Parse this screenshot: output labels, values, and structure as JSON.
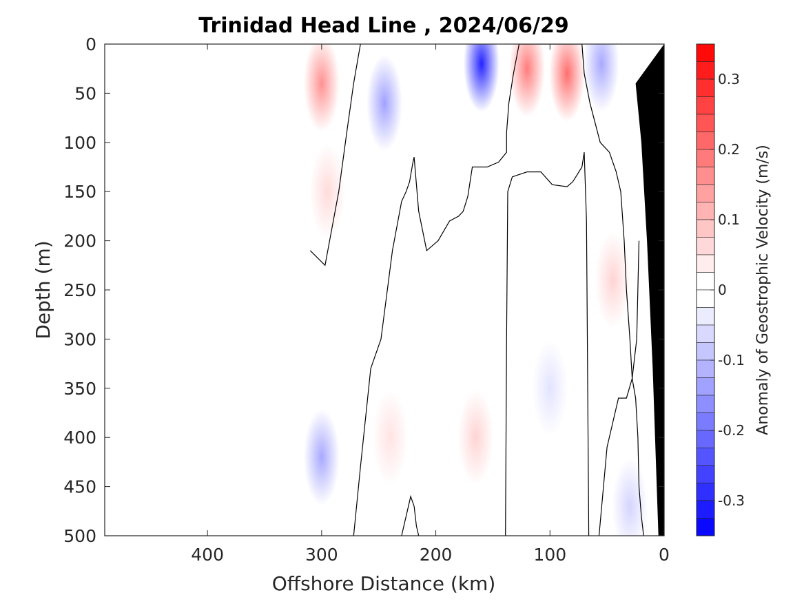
{
  "chart_data": {
    "type": "heatmap",
    "title": "Trinidad Head Line , 2024/06/29",
    "xlabel": "Offshore Distance (km)",
    "ylabel": "Depth (m)",
    "xlim": [
      490,
      0
    ],
    "ylim": [
      0,
      500
    ],
    "x_reversed": true,
    "y_reversed": true,
    "xticks": [
      400,
      300,
      200,
      100,
      0
    ],
    "yticks": [
      0,
      50,
      100,
      150,
      200,
      250,
      300,
      350,
      400,
      450,
      500
    ],
    "colorbar": {
      "label": "Anomaly of Geostrophic Velocity (m/s)",
      "range": [
        -0.35,
        0.35
      ],
      "ticks": [
        0.3,
        0.2,
        0.1,
        0,
        -0.1,
        -0.2,
        -0.3
      ],
      "tick_labels": [
        "0.3",
        "0.2",
        "0.1",
        "0",
        "-0.1",
        "-0.2",
        "-0.3"
      ],
      "levels_step": 0.025,
      "colormap": "blue-white-red",
      "negative_color": "#0000ff",
      "positive_color": "#ff0000"
    },
    "data_extent_km": [
      0,
      310
    ],
    "cells": [
      {
        "x": 300,
        "depth": 40,
        "value": 0.15
      },
      {
        "x": 295,
        "depth": 150,
        "value": 0.05
      },
      {
        "x": 300,
        "depth": 420,
        "value": -0.12
      },
      {
        "x": 245,
        "depth": 60,
        "value": -0.13
      },
      {
        "x": 240,
        "depth": 400,
        "value": 0.04
      },
      {
        "x": 160,
        "depth": 20,
        "value": -0.3
      },
      {
        "x": 165,
        "depth": 400,
        "value": 0.06
      },
      {
        "x": 120,
        "depth": 25,
        "value": 0.18
      },
      {
        "x": 85,
        "depth": 30,
        "value": 0.2
      },
      {
        "x": 100,
        "depth": 350,
        "value": -0.04
      },
      {
        "x": 55,
        "depth": 20,
        "value": -0.12
      },
      {
        "x": 45,
        "depth": 240,
        "value": 0.06
      },
      {
        "x": 30,
        "depth": 470,
        "value": -0.06
      }
    ],
    "zero_contours": [
      {
        "x": [
          310,
          297,
          285,
          278,
          272,
          266
        ],
        "depth": [
          210,
          225,
          150,
          90,
          40,
          0
        ]
      },
      {
        "x": [
          272,
          266,
          257,
          248,
          238,
          230,
          226,
          223,
          220,
          219,
          215,
          208,
          198,
          188,
          180,
          176,
          172,
          168,
          155,
          145,
          138,
          138,
          136,
          132,
          127,
          120,
          108,
          90,
          78,
          72,
          70,
          65,
          56,
          48,
          42,
          38,
          35,
          33,
          30,
          28,
          25,
          23,
          22,
          20,
          18
        ],
        "depth": [
          500,
          430,
          330,
          300,
          210,
          160,
          150,
          140,
          120,
          115,
          170,
          210,
          200,
          180,
          175,
          170,
          155,
          125,
          125,
          120,
          110,
          90,
          60,
          30,
          0,
          0,
          0,
          0,
          0,
          0,
          30,
          60,
          100,
          110,
          130,
          150,
          200,
          250,
          300,
          340,
          360,
          400,
          450,
          480,
          500
        ]
      },
      {
        "x": [
          230,
          222,
          219,
          217,
          215
        ],
        "depth": [
          500,
          460,
          470,
          490,
          500
        ]
      },
      {
        "x": [
          139,
          138,
          137,
          133,
          120,
          108,
          98,
          85,
          80,
          72,
          70,
          68,
          66
        ],
        "depth": [
          500,
          300,
          150,
          135,
          130,
          130,
          143,
          145,
          140,
          125,
          110,
          180,
          500
        ]
      },
      {
        "x": [
          57,
          50,
          40,
          33,
          28,
          24,
          22
        ],
        "depth": [
          500,
          410,
          360,
          360,
          340,
          300,
          200
        ]
      }
    ],
    "land": {
      "x": [
        0,
        0,
        5,
        10,
        15,
        20,
        25
      ],
      "depth": [
        0,
        500,
        500,
        330,
        200,
        100,
        40
      ],
      "color": "#000000"
    }
  }
}
